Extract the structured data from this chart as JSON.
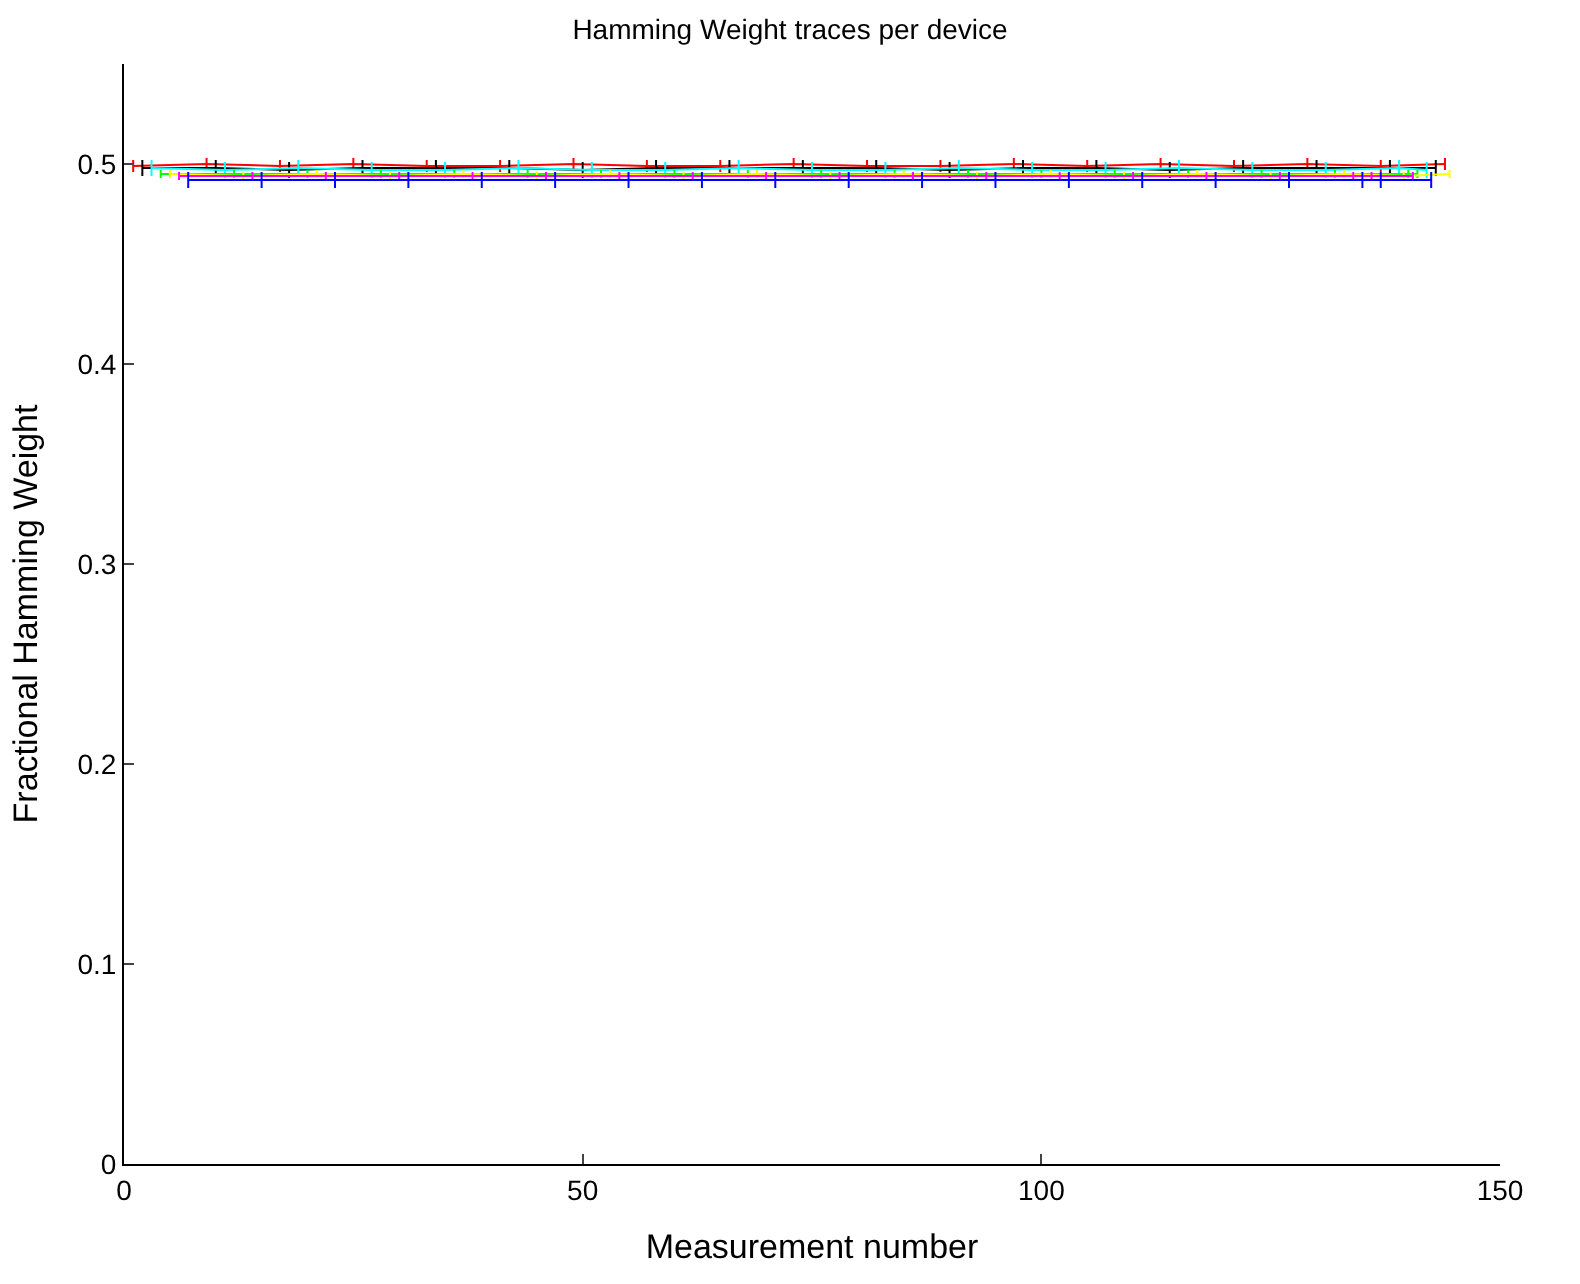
{
  "chart_data": {
    "type": "line",
    "title": "Hamming Weight traces per device",
    "xlabel": "Measurement number",
    "ylabel": "Fractional Hamming Weight",
    "x": [
      1,
      9,
      17,
      25,
      33,
      41,
      49,
      57,
      65,
      73,
      81,
      89,
      97,
      105,
      113,
      121,
      129,
      137,
      144
    ],
    "series": [
      {
        "color": "#ff0000",
        "values": [
          0.499,
          0.5,
          0.499,
          0.5,
          0.499,
          0.499,
          0.5,
          0.499,
          0.499,
          0.5,
          0.499,
          0.499,
          0.5,
          0.499,
          0.5,
          0.499,
          0.5,
          0.499,
          0.5
        ],
        "errors": [
          0.003,
          0.003,
          0.003,
          0.003,
          0.003,
          0.003,
          0.003,
          0.003,
          0.003,
          0.003,
          0.003,
          0.003,
          0.003,
          0.003,
          0.003,
          0.003,
          0.003,
          0.003,
          0.003
        ]
      },
      {
        "color": "#000000",
        "x": [
          2,
          10,
          18,
          26,
          34,
          42,
          50,
          58,
          66,
          74,
          82,
          90,
          98,
          106,
          114,
          122,
          130,
          138,
          143
        ],
        "values": [
          0.498,
          0.498,
          0.497,
          0.498,
          0.498,
          0.498,
          0.497,
          0.498,
          0.498,
          0.498,
          0.498,
          0.497,
          0.498,
          0.498,
          0.497,
          0.498,
          0.498,
          0.498,
          0.498
        ],
        "errors": [
          0.004,
          0.004,
          0.004,
          0.004,
          0.004,
          0.004,
          0.004,
          0.004,
          0.004,
          0.004,
          0.004,
          0.004,
          0.004,
          0.004,
          0.004,
          0.004,
          0.004,
          0.004,
          0.004
        ]
      },
      {
        "color": "#00ffff",
        "x": [
          3,
          11,
          19,
          27,
          35,
          43,
          51,
          59,
          67,
          75,
          83,
          91,
          99,
          107,
          115,
          123,
          131,
          139,
          142
        ],
        "values": [
          0.498,
          0.497,
          0.498,
          0.497,
          0.497,
          0.498,
          0.497,
          0.497,
          0.498,
          0.497,
          0.497,
          0.498,
          0.497,
          0.497,
          0.498,
          0.497,
          0.497,
          0.498,
          0.497
        ],
        "errors": [
          0.004,
          0.004,
          0.004,
          0.004,
          0.004,
          0.004,
          0.004,
          0.004,
          0.004,
          0.004,
          0.004,
          0.004,
          0.004,
          0.004,
          0.004,
          0.004,
          0.004,
          0.004,
          0.004
        ]
      },
      {
        "color": "#00ff00",
        "x": [
          4,
          12,
          20,
          28,
          36,
          44,
          52,
          60,
          68,
          76,
          84,
          92,
          100,
          108,
          116,
          124,
          132,
          140,
          141
        ],
        "values": [
          0.495,
          0.495,
          0.495,
          0.495,
          0.495,
          0.495,
          0.495,
          0.495,
          0.495,
          0.495,
          0.495,
          0.495,
          0.495,
          0.495,
          0.495,
          0.495,
          0.495,
          0.495,
          0.495
        ],
        "errors": [
          0.002,
          0.002,
          0.002,
          0.002,
          0.002,
          0.002,
          0.002,
          0.002,
          0.002,
          0.002,
          0.002,
          0.002,
          0.002,
          0.002,
          0.002,
          0.002,
          0.002,
          0.002,
          0.002
        ]
      },
      {
        "color": "#ffff00",
        "x": [
          5,
          13,
          21,
          29,
          37,
          45,
          53,
          61,
          69,
          77,
          85,
          93,
          101,
          109,
          117,
          125,
          133,
          139.5,
          144.5
        ],
        "values": [
          0.495,
          0.494,
          0.495,
          0.494,
          0.495,
          0.494,
          0.495,
          0.494,
          0.495,
          0.494,
          0.495,
          0.494,
          0.495,
          0.494,
          0.495,
          0.494,
          0.495,
          0.494,
          0.495
        ],
        "errors": [
          0.002,
          0.002,
          0.002,
          0.002,
          0.002,
          0.002,
          0.002,
          0.002,
          0.002,
          0.002,
          0.002,
          0.002,
          0.002,
          0.002,
          0.002,
          0.002,
          0.002,
          0.002,
          0.002
        ]
      },
      {
        "color": "#ff00ff",
        "x": [
          6,
          14,
          22,
          30,
          38,
          46,
          54,
          62,
          70,
          78,
          86,
          94,
          102,
          110,
          118,
          126,
          134,
          136,
          140.5
        ],
        "values": [
          0.494,
          0.494,
          0.494,
          0.494,
          0.494,
          0.494,
          0.494,
          0.494,
          0.494,
          0.494,
          0.494,
          0.494,
          0.494,
          0.494,
          0.494,
          0.494,
          0.494,
          0.494,
          0.494
        ],
        "errors": [
          0.002,
          0.002,
          0.002,
          0.002,
          0.002,
          0.002,
          0.002,
          0.002,
          0.002,
          0.002,
          0.002,
          0.002,
          0.002,
          0.002,
          0.002,
          0.002,
          0.002,
          0.002,
          0.002
        ]
      },
      {
        "color": "#0000ff",
        "x": [
          7,
          15,
          23,
          31,
          39,
          47,
          55,
          63,
          71,
          79,
          87,
          95,
          103,
          111,
          119,
          127,
          135,
          137,
          142.5
        ],
        "values": [
          0.492,
          0.492,
          0.492,
          0.492,
          0.492,
          0.492,
          0.492,
          0.492,
          0.492,
          0.492,
          0.492,
          0.492,
          0.492,
          0.492,
          0.492,
          0.492,
          0.492,
          0.492,
          0.492
        ],
        "errors": [
          0.004,
          0.004,
          0.004,
          0.004,
          0.004,
          0.004,
          0.004,
          0.004,
          0.004,
          0.004,
          0.004,
          0.004,
          0.004,
          0.004,
          0.004,
          0.004,
          0.004,
          0.004,
          0.004
        ]
      }
    ],
    "xlim": [
      0,
      150
    ],
    "xticks": [
      0,
      50,
      100,
      150
    ],
    "ylim": [
      0,
      0.55
    ],
    "yticks": [
      0,
      0.1,
      0.2,
      0.3,
      0.4,
      0.5
    ],
    "line_style": "solid"
  }
}
